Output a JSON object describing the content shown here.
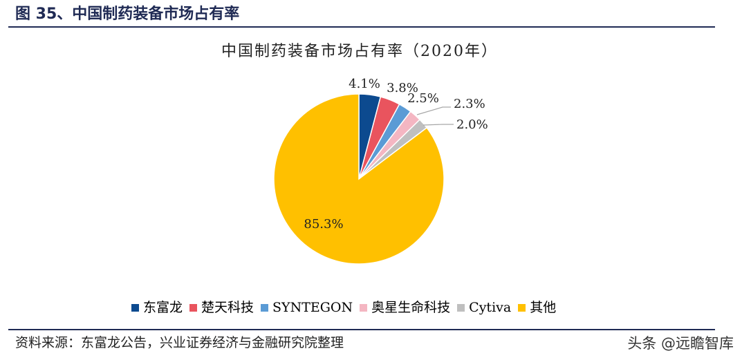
{
  "header": {
    "figure_title": "图 35、中国制药装备市场占有率"
  },
  "chart_data": {
    "type": "pie",
    "title": "中国制药装备市场占有率（2020年）",
    "slices": [
      {
        "name": "东富龙",
        "value": 4.1,
        "label": "4.1%",
        "color": "#0c4a8f"
      },
      {
        "name": "楚天科技",
        "value": 3.8,
        "label": "3.8%",
        "color": "#e9545e"
      },
      {
        "name": "SYNTEGON",
        "value": 2.5,
        "label": "2.5%",
        "color": "#5b9bd5"
      },
      {
        "name": "奥星生命科技",
        "value": 2.3,
        "label": "2.3%",
        "color": "#f4b6c2"
      },
      {
        "name": "Cytiva",
        "value": 2.0,
        "label": "2.0%",
        "color": "#bfbfbf"
      },
      {
        "name": "其他",
        "value": 85.3,
        "label": "85.3%",
        "color": "#ffc000"
      }
    ],
    "start_angle": "12 o'clock",
    "direction": "clockwise",
    "legend_position": "bottom"
  },
  "footer": {
    "source": "资料来源：东富龙公告，兴业证券经济与金融研究院整理",
    "watermark": "头条 @远瞻智库"
  }
}
